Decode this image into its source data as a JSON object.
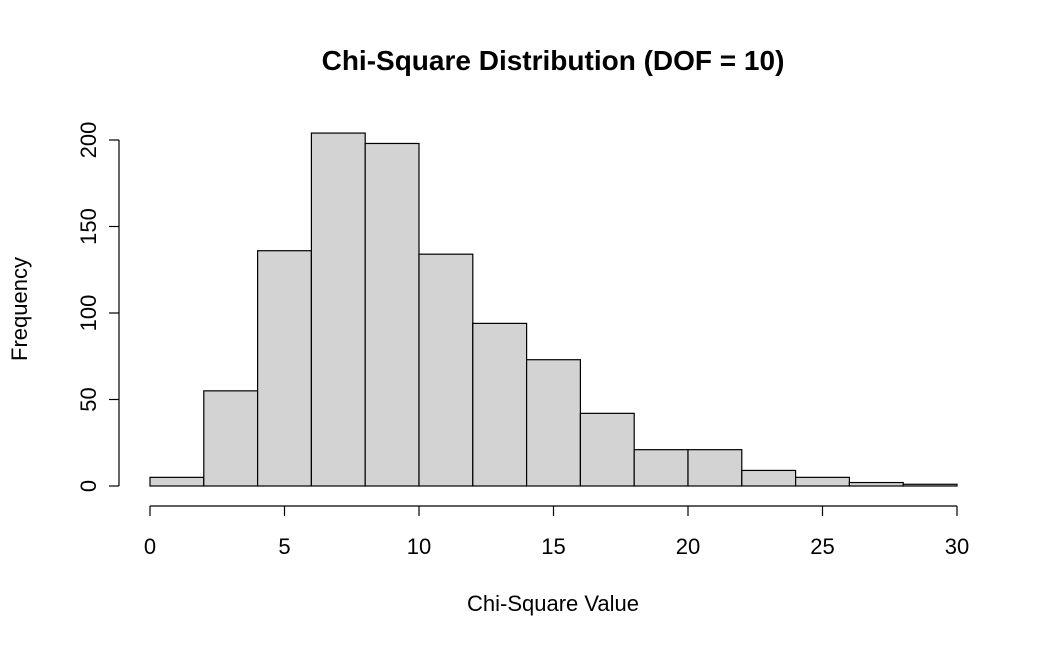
{
  "chart_data": {
    "type": "bar",
    "title": "Chi-Square Distribution (DOF = 10)",
    "xlabel": "Chi-Square Value",
    "ylabel": "Frequency",
    "bin_edges": [
      0,
      2,
      4,
      6,
      8,
      10,
      12,
      14,
      16,
      18,
      20,
      22,
      24,
      26,
      28,
      30
    ],
    "values": [
      5,
      55,
      136,
      204,
      198,
      134,
      94,
      73,
      42,
      21,
      21,
      9,
      5,
      2,
      1
    ],
    "xlim": [
      0,
      30
    ],
    "ylim": [
      0,
      200
    ],
    "x_ticks": [
      0,
      5,
      10,
      15,
      20,
      25,
      30
    ],
    "y_ticks": [
      0,
      50,
      100,
      150,
      200
    ],
    "grid": false,
    "bar_color": "#d3d3d3",
    "edge_color": "#000000"
  }
}
